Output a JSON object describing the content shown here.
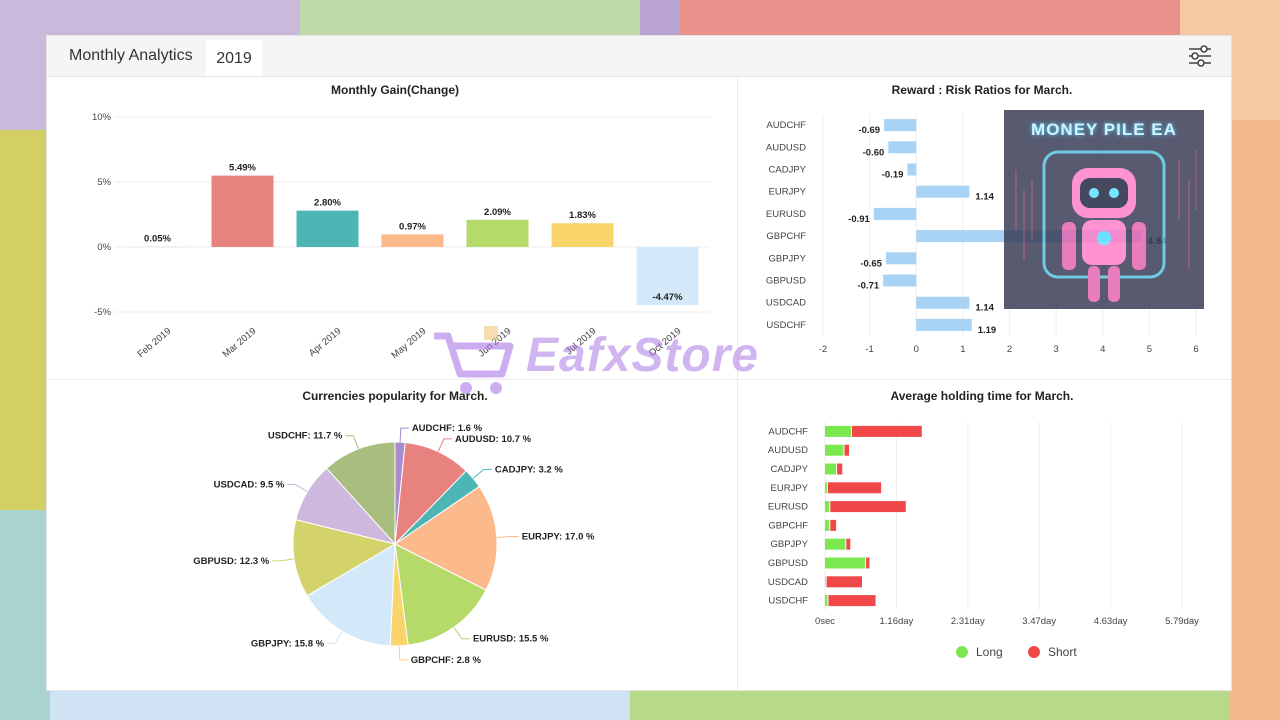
{
  "header": {
    "title": "Monthly Analytics",
    "tab": "2019"
  },
  "colors": {
    "long": "#7ce84f",
    "short": "#f04848",
    "reward_bar": "#a8d3f5"
  },
  "watermark": {
    "text": "EafxStore",
    "badge": "MONEY PILE EA"
  },
  "chart_data": [
    {
      "type": "bar",
      "title": "Monthly Gain(Change)",
      "categories": [
        "Feb 2019",
        "Mar 2019",
        "Apr 2019",
        "May 2019",
        "Jun 2019",
        "Jul 2019",
        "Oct 2019"
      ],
      "values": [
        0.05,
        5.49,
        2.8,
        0.97,
        2.09,
        1.83,
        -4.47
      ],
      "value_labels": [
        "0.05%",
        "5.49%",
        "2.80%",
        "0.97%",
        "2.09%",
        "1.83%",
        "-4.47%"
      ],
      "bar_colors": [
        "#e8e8e8",
        "#e8827f",
        "#4eb5b5",
        "#fbb98c",
        "#b6da6a",
        "#fad56b",
        "#d3e8f8"
      ],
      "yticks": [
        "10%",
        "5%",
        "0%",
        "-5%"
      ],
      "ylim": [
        -5,
        10
      ]
    },
    {
      "type": "bar",
      "orientation": "horizontal",
      "title": "Reward : Risk Ratios for March.",
      "categories": [
        "AUDCHF",
        "AUDUSD",
        "CADJPY",
        "EURJPY",
        "EURUSD",
        "GBPCHF",
        "GBPJPY",
        "GBPUSD",
        "USDCAD",
        "USDCHF"
      ],
      "values": [
        -0.69,
        -0.6,
        -0.19,
        1.14,
        -0.91,
        4.84,
        -0.65,
        -0.71,
        1.14,
        1.19
      ],
      "value_labels": [
        "-0.69",
        "-0.60",
        "-0.19",
        "1.14",
        "-0.91",
        "4.84",
        "-0.65",
        "-0.71",
        "1.14",
        "1.19"
      ],
      "xticks": [
        "-2",
        "-1",
        "0",
        "1",
        "2",
        "3",
        "4",
        "5",
        "6"
      ],
      "xlim": [
        -2,
        6
      ]
    },
    {
      "type": "pie",
      "title": "Currencies popularity for March.",
      "slices": [
        {
          "name": "AUDCHF",
          "value": 1.6,
          "label": "AUDCHF: 1.6 %",
          "color": "#a98bd0"
        },
        {
          "name": "AUDUSD",
          "value": 10.7,
          "label": "AUDUSD: 10.7 %",
          "color": "#e8827f"
        },
        {
          "name": "CADJPY",
          "value": 3.2,
          "label": "CADJPY: 3.2 %",
          "color": "#4eb5b5"
        },
        {
          "name": "EURJPY",
          "value": 17.0,
          "label": "EURJPY: 17.0 %",
          "color": "#fbb98c"
        },
        {
          "name": "EURUSD",
          "value": 15.5,
          "label": "EURUSD: 15.5 %",
          "color": "#b6da6a"
        },
        {
          "name": "GBPCHF",
          "value": 2.8,
          "label": "GBPCHF: 2.8 %",
          "color": "#fad56b"
        },
        {
          "name": "GBPJPY",
          "value": 15.8,
          "label": "GBPJPY: 15.8 %",
          "color": "#d3e8f8"
        },
        {
          "name": "GBPUSD",
          "value": 12.3,
          "label": "GBPUSD: 12.3 %",
          "color": "#d4d36b"
        },
        {
          "name": "USDCAD",
          "value": 9.5,
          "label": "USDCAD: 9.5 %",
          "color": "#cdb8de"
        },
        {
          "name": "USDCHF",
          "value": 11.7,
          "label": "USDCHF: 11.7 %",
          "color": "#a9bd7e"
        }
      ]
    },
    {
      "type": "bar",
      "orientation": "horizontal",
      "stacked": true,
      "title": "Average holding time for March.",
      "categories": [
        "AUDCHF",
        "AUDUSD",
        "CADJPY",
        "EURJPY",
        "EURUSD",
        "GBPCHF",
        "GBPJPY",
        "GBPUSD",
        "USDCAD",
        "USDCHF"
      ],
      "series": [
        {
          "name": "Long",
          "values_day": [
            0.42,
            0.3,
            0.18,
            0.03,
            0.07,
            0.07,
            0.33,
            0.65,
            0.01,
            0.04
          ]
        },
        {
          "name": "Short",
          "values_day": [
            1.15,
            0.09,
            0.1,
            0.88,
            1.24,
            0.11,
            0.08,
            0.07,
            0.59,
            0.78
          ]
        }
      ],
      "xticks": [
        "0sec",
        "1.16day",
        "2.31day",
        "3.47day",
        "4.63day",
        "5.79day"
      ],
      "xlim_day": [
        0,
        5.79
      ],
      "legend": "bottom"
    }
  ]
}
